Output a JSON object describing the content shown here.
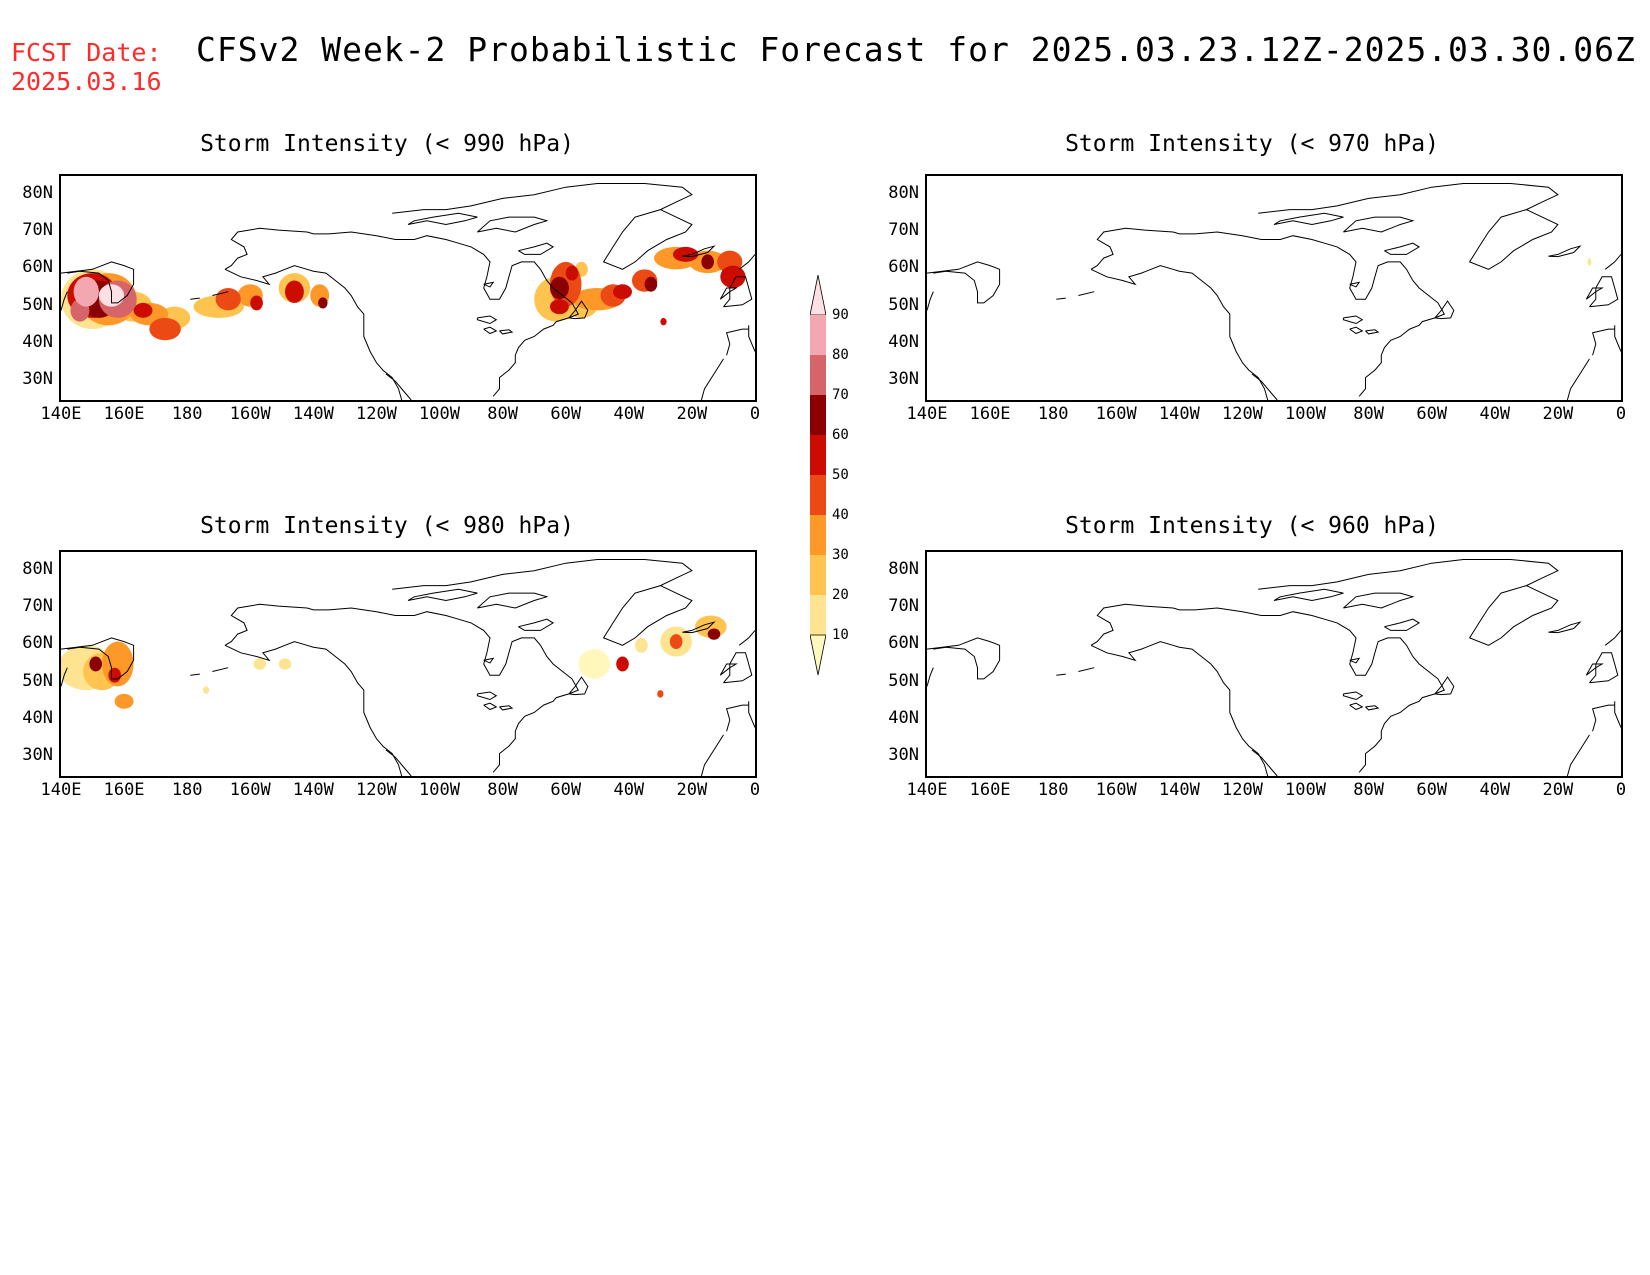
{
  "header": {
    "fcst_label": "FCST Date:",
    "fcst_date": "2025.03.16",
    "title": "CFSv2 Week-2 Probabilistic Forecast for 2025.03.23.12Z-2025.03.30.06Z"
  },
  "panels": [
    {
      "id": "p990",
      "title": "Storm Intensity (< 990 hPa)"
    },
    {
      "id": "p970",
      "title": "Storm Intensity (< 970 hPa)"
    },
    {
      "id": "p980",
      "title": "Storm Intensity (< 980 hPa)"
    },
    {
      "id": "p960",
      "title": "Storm Intensity (< 960 hPa)"
    }
  ],
  "lat_labels": [
    "80N",
    "70N",
    "60N",
    "50N",
    "40N",
    "30N"
  ],
  "lon_labels": [
    "140E",
    "160E",
    "180",
    "160W",
    "140W",
    "120W",
    "100W",
    "80W",
    "60W",
    "40W",
    "20W",
    "0"
  ],
  "colorbar": {
    "levels": [
      "10",
      "20",
      "30",
      "40",
      "50",
      "60",
      "70",
      "80",
      "90"
    ],
    "colors": [
      "#fff7bc",
      "#fee391",
      "#fec44f",
      "#fe9929",
      "#ec4a14",
      "#cc0c00",
      "#8b0000",
      "#d6656a",
      "#f3a7b0",
      "#fce0e4"
    ]
  },
  "chart_data": {
    "type": "heatmap",
    "units": "probability (%)",
    "regions": [
      {
        "panel": "p990",
        "area": "NW Pacific / Kamchatka",
        "lon_range": "140E-175E",
        "lat_range": "42N-62N",
        "max_prob": 90
      },
      {
        "panel": "p990",
        "area": "N Pacific",
        "lon_range": "175E-145W",
        "lat_range": "42N-56N",
        "max_prob": 60
      },
      {
        "panel": "p990",
        "area": "Labrador Sea / NW Atlantic",
        "lon_range": "65W-30W",
        "lat_range": "46N-62N",
        "max_prob": 70
      },
      {
        "panel": "p990",
        "area": "NE Atlantic / Iceland",
        "lon_range": "35W-2W",
        "lat_range": "52N-67N",
        "max_prob": 70
      },
      {
        "panel": "p980",
        "area": "NW Pacific / Kamchatka",
        "lon_range": "141E-170E",
        "lat_range": "42N-63N",
        "max_prob": 60
      },
      {
        "panel": "p980",
        "area": "N Atlantic",
        "lon_range": "60W-10W",
        "lat_range": "43N-67N",
        "max_prob": 50
      },
      {
        "panel": "p970",
        "area": "Iceland",
        "lon_range": "10W",
        "lat_range": "62N",
        "max_prob": 20
      },
      {
        "panel": "p960",
        "area": "none",
        "lon_range": "",
        "lat_range": "",
        "max_prob": 0
      }
    ]
  }
}
